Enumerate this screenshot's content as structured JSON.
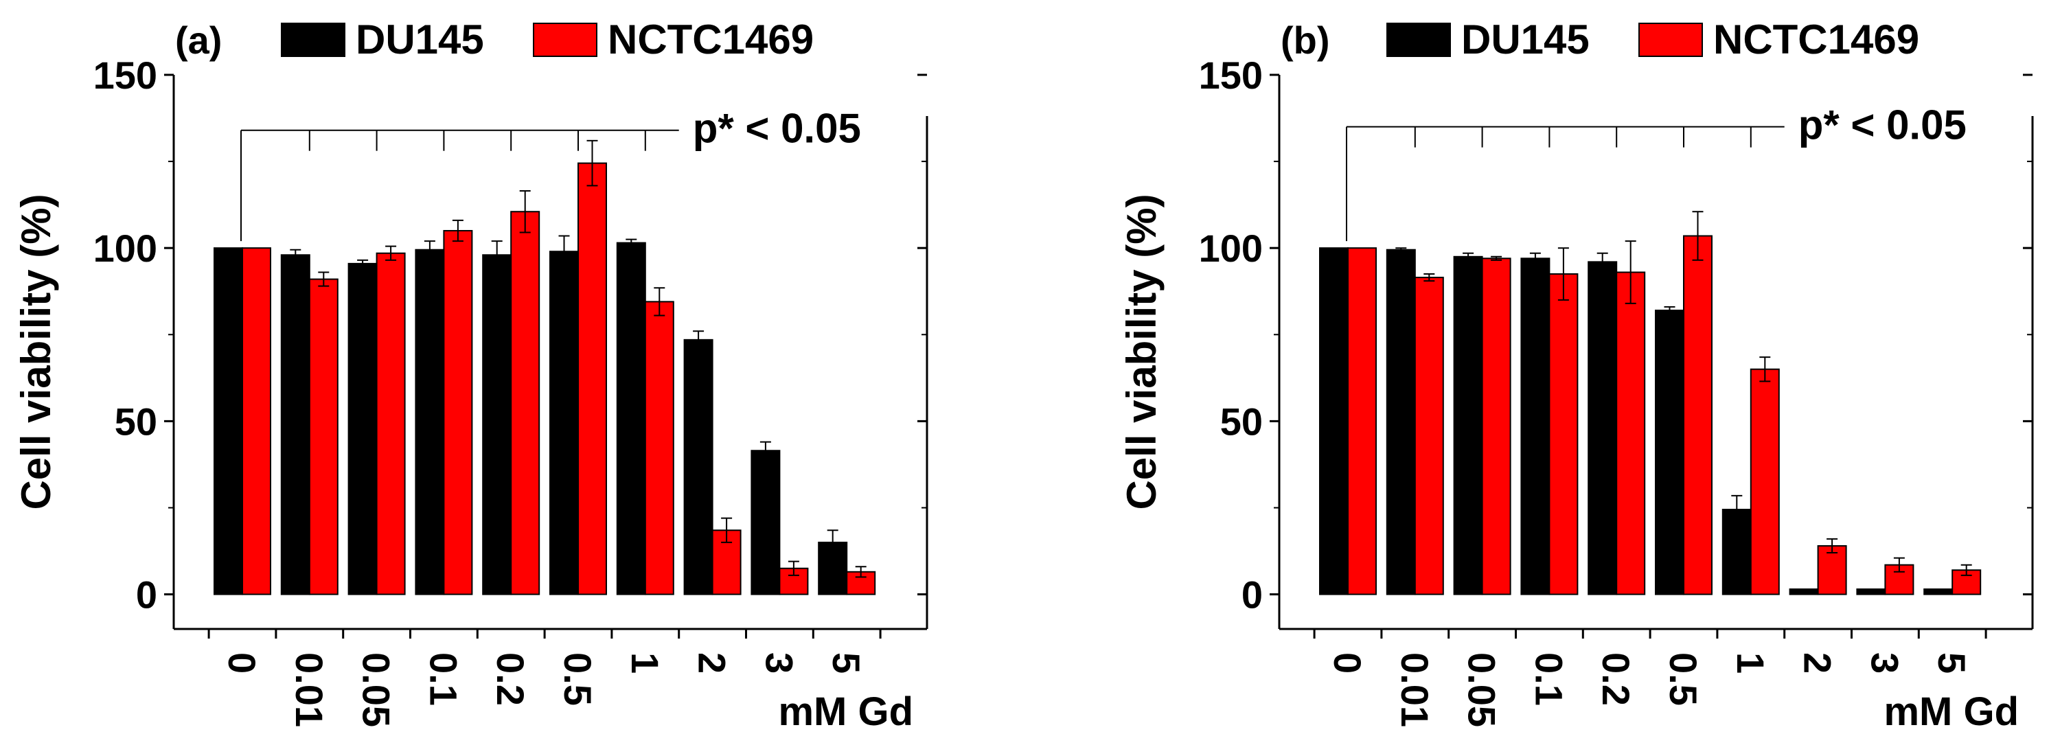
{
  "chart_data": [
    {
      "type": "bar",
      "panel_label": "(a)",
      "title": "",
      "xlabel": "mM Gd",
      "ylabel": "Cell viability (%)",
      "ylim": [
        -10,
        150
      ],
      "yticks": [
        0,
        50,
        100,
        150
      ],
      "categories": [
        "0",
        "0.01",
        "0.05",
        "0.1",
        "0.2",
        "0.5",
        "1",
        "2",
        "3",
        "5"
      ],
      "series": [
        {
          "name": "DU145",
          "color": "#000000",
          "values": [
            100,
            98,
            95.5,
            99.5,
            98,
            99,
            101.5,
            73.5,
            41.5,
            15
          ],
          "errors": [
            0,
            1.5,
            1,
            2.5,
            4,
            4.5,
            1,
            2.5,
            2.5,
            3.5
          ]
        },
        {
          "name": "NCTC1469",
          "color": "#ff0000",
          "values": [
            100,
            91,
            98.5,
            105,
            110.5,
            124.5,
            84.5,
            18.5,
            7.5,
            6.5
          ],
          "errors": [
            0,
            2,
            2,
            3,
            6,
            6.5,
            4,
            3.5,
            2,
            1.5
          ]
        }
      ],
      "annotation": {
        "text": "p* < 0.05",
        "y_value": 134
      },
      "legend": "top",
      "grid": false
    },
    {
      "type": "bar",
      "panel_label": "(b)",
      "title": "",
      "xlabel": "mM Gd",
      "ylabel": "Cell viability (%)",
      "ylim": [
        -10,
        150
      ],
      "yticks": [
        0,
        50,
        100,
        150
      ],
      "categories": [
        "0",
        "0.01",
        "0.05",
        "0.1",
        "0.2",
        "0.5",
        "1",
        "2",
        "3",
        "5"
      ],
      "series": [
        {
          "name": "DU145",
          "color": "#000000",
          "values": [
            100,
            99.5,
            97.5,
            97,
            96,
            82,
            24.5,
            1.5,
            1.5,
            1.5
          ],
          "errors": [
            0,
            0.5,
            1,
            1.5,
            2.5,
            1,
            4,
            0,
            0,
            0
          ]
        },
        {
          "name": "NCTC1469",
          "color": "#ff0000",
          "values": [
            100,
            91.5,
            97,
            92.5,
            93,
            103.5,
            65,
            14,
            8.5,
            7
          ],
          "errors": [
            0,
            1,
            0.5,
            7.5,
            9,
            7,
            3.5,
            2,
            2,
            1.5
          ]
        }
      ],
      "annotation": {
        "text": "p* < 0.05",
        "y_value": 135
      },
      "legend": "top",
      "grid": false
    }
  ]
}
